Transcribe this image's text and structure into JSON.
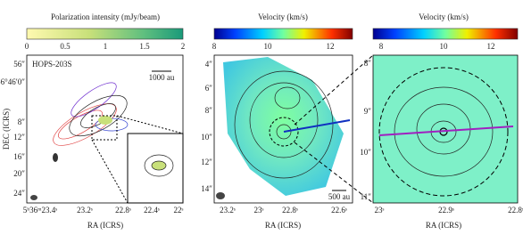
{
  "panels": [
    {
      "colorbar": {
        "label": "Polarization intensity (mJy/beam)",
        "ticks": [
          "0",
          "0.5",
          "1",
          "1.5",
          "2"
        ]
      },
      "source": "HOPS-203S",
      "scale_bar": "1000 au",
      "y_label": "DEC (ICRS)",
      "x_label": "RA (ICRS)",
      "y_ticks": [
        "56″",
        "-6°46′0″",
        "8″",
        "12″",
        "16″",
        "20″",
        "24″"
      ],
      "x_ticks": [
        "5ʰ36ᵐ23.4ˢ",
        "23.2ˢ",
        "22.8ˢ",
        "22.4ˢ",
        "22ˢ"
      ]
    },
    {
      "colorbar": {
        "label": "Velocity (km/s)",
        "ticks": [
          "8",
          "10",
          "12"
        ]
      },
      "scale_bar": "500 au",
      "x_label": "RA (ICRS)",
      "y_ticks": [
        "4″",
        "6″",
        "8″",
        "10″",
        "12″",
        "14″"
      ],
      "x_ticks": [
        "23.2ˢ",
        "23ˢ",
        "22.8ˢ",
        "22.6ˢ"
      ]
    },
    {
      "colorbar": {
        "label": "Velocity (km/s)",
        "ticks": [
          "8",
          "10",
          "12"
        ]
      },
      "x_label": "RA (ICRS)",
      "y_ticks": [
        "8″",
        "9″",
        "10″",
        "11″"
      ],
      "x_ticks": [
        "23ˢ",
        "22.9ˢ",
        "22.8ˢ"
      ]
    }
  ]
}
